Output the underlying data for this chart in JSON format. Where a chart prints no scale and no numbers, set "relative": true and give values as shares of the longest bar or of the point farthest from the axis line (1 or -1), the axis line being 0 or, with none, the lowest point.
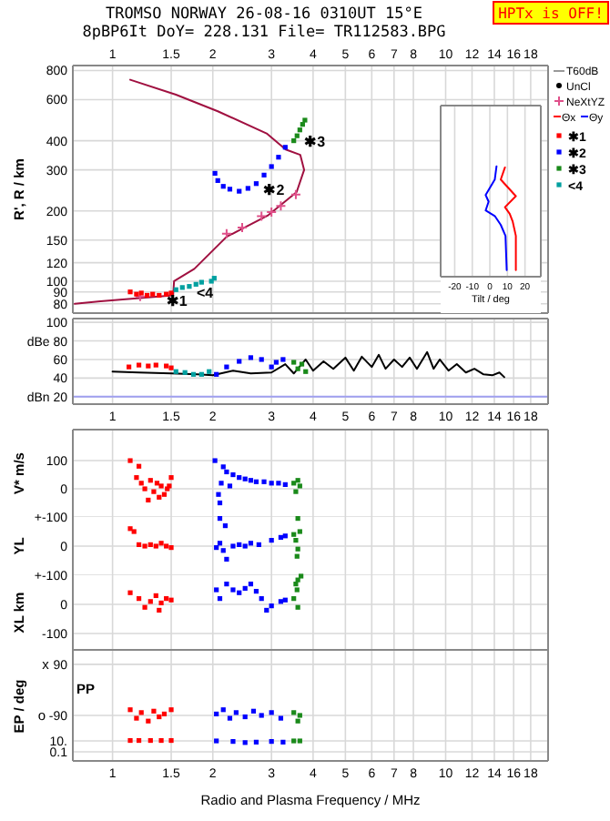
{
  "chart_data": [
    {
      "type": "scatter",
      "title": "TROMSO NORWAY 26-08-16 0310UT 15°E",
      "subtitle": "8pBP6It DoY= 228.131 File= TR112583.BPG",
      "ylabel": "R', R / km",
      "log": "xy",
      "grid": true,
      "legend": "right",
      "marker": "square",
      "xlim": [
        0.76,
        20.3
      ],
      "xticks": [
        1,
        1.5,
        2,
        3,
        4,
        5,
        6,
        7,
        8,
        10,
        12,
        14,
        16,
        18
      ],
      "ylim": [
        73,
        840
      ],
      "yticks": [
        80,
        90,
        100,
        120,
        150,
        200,
        300,
        400,
        600,
        800
      ],
      "annotations": [
        "HPTx is OFF!",
        "T60dB",
        {
          "text": "✱1",
          "x": 1.38,
          "y": 87
        },
        {
          "text": "✱2",
          "x": 2.7,
          "y": 262
        },
        {
          "text": "✱3",
          "x": 3.58,
          "y": 420
        },
        {
          "text": "<4",
          "x": 1.7,
          "y": 95
        }
      ],
      "series": [
        {
          "type": "line",
          "marker": "none",
          "color": "#a01040",
          "x": [
            0.77,
            0.92,
            1.52,
            1.53,
            1.76,
            2.2,
            2.92,
            3.57,
            3.76,
            3.66,
            3.31,
            2.9,
            2.07,
            1.55,
            1.13
          ],
          "values": [
            80,
            82,
            87,
            100,
            113,
            155,
            191,
            241,
            300,
            348,
            367,
            430,
            535,
            630,
            730
          ]
        },
        {
          "name": "NeXtYZ",
          "marker": "cross",
          "color": "#e0508a",
          "x": [
            1.21,
            2.2,
            2.45,
            2.8,
            3.0,
            3.2,
            3.55
          ],
          "values": [
            86,
            160,
            170,
            190,
            198,
            210,
            235
          ]
        },
        {
          "name": "✱1",
          "color": "#ff0000",
          "x": [
            1.13,
            1.18,
            1.22,
            1.27,
            1.32,
            1.38,
            1.45,
            1.5
          ],
          "values": [
            90,
            88,
            89,
            87,
            88,
            87,
            88,
            89
          ]
        },
        {
          "name": "✱2",
          "color": "#0000ff",
          "x": [
            2.03,
            2.07,
            2.15,
            2.25,
            2.4,
            2.55,
            2.7,
            2.85,
            3.0,
            3.15,
            3.3
          ],
          "values": [
            290,
            270,
            255,
            248,
            243,
            250,
            262,
            285,
            310,
            340,
            375
          ]
        },
        {
          "name": "✱3",
          "color": "#1a8a1a",
          "x": [
            3.5,
            3.58,
            3.65,
            3.72,
            3.78
          ],
          "values": [
            400,
            420,
            445,
            470,
            490
          ]
        },
        {
          "name": "<4",
          "color": "#00a0a0",
          "x": [
            1.55,
            1.62,
            1.7,
            1.78,
            1.85,
            1.98,
            2.02
          ],
          "values": [
            92,
            94,
            95,
            97,
            99,
            100,
            103
          ]
        }
      ]
    },
    {
      "type": "line",
      "xlabel": "Tilt / deg",
      "relative": true,
      "legend": "right",
      "grid": "x",
      "tick_labels": "x",
      "xlim": [
        -28,
        29
      ],
      "xticks": [
        -20,
        -10,
        0,
        10,
        20
      ],
      "series": [
        {
          "name": "Θx",
          "color": "#ff0000",
          "x": [
            8.6,
            6.2,
            14.8,
            8.6,
            11.3,
            13,
            14.8,
            14.8
          ],
          "values": [
            0.99,
            0.88,
            0.73,
            0.63,
            0.57,
            0.5,
            0.37,
            0.06
          ]
        },
        {
          "name": "Θy",
          "color": "#0000ff",
          "x": [
            3.8,
            2.8,
            -2.4,
            -0.7,
            -2.4,
            2.8,
            6.2,
            8.9,
            9.6
          ],
          "values": [
            1,
            0.88,
            0.74,
            0.68,
            0.6,
            0.55,
            0.47,
            0.37,
            0.06
          ]
        }
      ]
    },
    {
      "type": "scatter",
      "log": "x",
      "grid": true,
      "marker": "square",
      "xlim": [
        0.76,
        20.3
      ],
      "xticks": [
        1,
        1.5,
        2,
        3,
        4,
        5,
        6,
        7,
        8,
        10,
        12,
        14,
        16,
        18
      ],
      "ylim": [
        12,
        104
      ],
      "yticks": [
        100,
        {
          "value": 80,
          "label": "dBe 80"
        },
        60,
        40,
        {
          "value": 20,
          "label": "dBn 20"
        }
      ],
      "ref_lines": [
        {
          "axis": "y",
          "value": 20,
          "color": "#a0a0f0"
        }
      ],
      "series": [
        {
          "name": "UnCl",
          "type": "line",
          "marker": "none",
          "color": "#000000",
          "x": [
            1.0,
            1.2,
            1.5,
            1.8,
            2.0,
            2.3,
            2.6,
            3.0,
            3.3,
            3.5,
            3.8,
            4.0,
            4.3,
            4.6,
            5.0,
            5.3,
            5.6,
            6.0,
            6.3,
            6.6,
            7.0,
            7.4,
            7.8,
            8.2,
            8.8,
            9.2,
            9.6,
            10.2,
            10.8,
            11.5,
            12.2,
            13,
            13.8,
            14.5,
            15
          ],
          "values": [
            47,
            46,
            45,
            44,
            43,
            48,
            45,
            46,
            55,
            45,
            60,
            48,
            58,
            50,
            62,
            48,
            63,
            52,
            65,
            50,
            60,
            52,
            62,
            50,
            68,
            50,
            60,
            48,
            55,
            46,
            50,
            44,
            43,
            46,
            41
          ]
        },
        {
          "color": "#ff0000",
          "x": [
            1.12,
            1.2,
            1.28,
            1.35,
            1.45,
            1.5
          ],
          "values": [
            52,
            54,
            53,
            54,
            53,
            51
          ]
        },
        {
          "color": "#00a0a0",
          "x": [
            1.55,
            1.65,
            1.75,
            1.85,
            1.95
          ],
          "values": [
            47,
            46,
            44,
            44,
            47
          ]
        },
        {
          "color": "#0000ff",
          "x": [
            2.05,
            2.2,
            2.4,
            2.6,
            2.8,
            3.0,
            3.1,
            3.25
          ],
          "values": [
            44,
            52,
            58,
            62,
            60,
            52,
            57,
            60
          ]
        },
        {
          "color": "#1a8a1a",
          "x": [
            3.5,
            3.6,
            3.7,
            3.8
          ],
          "values": [
            57,
            50,
            55,
            47
          ]
        }
      ]
    },
    {
      "type": "scatter",
      "log": "x",
      "grid": true,
      "marker": "square",
      "tick_labels": "y",
      "ylabel": "V* m/s",
      "xlim": [
        0.76,
        20.3
      ],
      "xticks": [
        1,
        1.5,
        2,
        3,
        4,
        5,
        6,
        7,
        8,
        10,
        12,
        14,
        16,
        18
      ],
      "ylim": [
        -100,
        210
      ],
      "yticks": [
        100,
        0,
        {
          "value": -100,
          "label": "+-100"
        }
      ],
      "series": [
        {
          "color": "#ff0000",
          "x": [
            1.13,
            1.2,
            1.18,
            1.22,
            1.25,
            1.3,
            1.33,
            1.36,
            1.4,
            1.43,
            1.46,
            1.5,
            1.48,
            1.28,
            1.38
          ],
          "values": [
            100,
            80,
            40,
            20,
            0,
            30,
            -10,
            20,
            10,
            -20,
            0,
            40,
            10,
            -40,
            -30
          ]
        },
        {
          "color": "#0000ff",
          "x": [
            2.03,
            2.08,
            2.1,
            2.15,
            2.2,
            2.3,
            2.4,
            2.5,
            2.6,
            2.7,
            2.85,
            3.0,
            3.15,
            3.3,
            2.25,
            2.12
          ],
          "values": [
            100,
            -20,
            -50,
            78,
            60,
            50,
            40,
            35,
            30,
            25,
            25,
            20,
            20,
            15,
            10,
            20
          ]
        },
        {
          "color": "#1a8a1a",
          "x": [
            3.5,
            3.6,
            3.55,
            3.65
          ],
          "values": [
            20,
            30,
            -10,
            10
          ]
        }
      ]
    },
    {
      "type": "scatter",
      "log": "x",
      "grid": true,
      "marker": "square",
      "tick_labels": "y",
      "ylabel": "YL",
      "xlim": [
        0.76,
        20.3
      ],
      "xticks": [
        1,
        1.5,
        2,
        3,
        4,
        5,
        6,
        7,
        8,
        10,
        12,
        14,
        16,
        18
      ],
      "ylim": [
        -100,
        100
      ],
      "yticks": [
        0,
        {
          "value": -100,
          "label": "+-100"
        }
      ],
      "series": [
        {
          "color": "#ff0000",
          "x": [
            1.13,
            1.16,
            1.2,
            1.25,
            1.3,
            1.35,
            1.4,
            1.45,
            1.5
          ],
          "values": [
            60,
            50,
            5,
            0,
            5,
            0,
            10,
            0,
            -5
          ]
        },
        {
          "color": "#0000ff",
          "x": [
            2.05,
            2.1,
            2.15,
            2.2,
            2.3,
            2.4,
            2.5,
            2.6,
            2.75,
            3.0,
            3.2,
            3.3,
            2.1,
            2.18
          ],
          "values": [
            -5,
            10,
            -15,
            -45,
            0,
            5,
            0,
            10,
            5,
            20,
            30,
            35,
            95,
            70
          ]
        },
        {
          "color": "#1a8a1a",
          "x": [
            3.5,
            3.55,
            3.6,
            3.65,
            3.6,
            3.58
          ],
          "values": [
            40,
            20,
            -10,
            50,
            95,
            -35
          ]
        }
      ]
    },
    {
      "type": "scatter",
      "log": "x",
      "grid": true,
      "marker": "square",
      "tick_labels": "y",
      "ylabel": "XL km",
      "xlim": [
        0.76,
        20.3
      ],
      "xticks": [
        1,
        1.5,
        2,
        3,
        4,
        5,
        6,
        7,
        8,
        10,
        12,
        14,
        16,
        18
      ],
      "ylim": [
        -156,
        100
      ],
      "yticks": [
        0,
        -100
      ],
      "series": [
        {
          "color": "#ff0000",
          "x": [
            1.13,
            1.2,
            1.25,
            1.3,
            1.35,
            1.4,
            1.45,
            1.5,
            1.38
          ],
          "values": [
            40,
            20,
            -10,
            10,
            30,
            5,
            20,
            15,
            -20
          ]
        },
        {
          "color": "#0000ff",
          "x": [
            2.05,
            2.1,
            2.2,
            2.3,
            2.4,
            2.5,
            2.7,
            2.8,
            2.9,
            3.0,
            3.2,
            3.3,
            2.6
          ],
          "values": [
            50,
            20,
            70,
            50,
            40,
            55,
            45,
            20,
            -20,
            -5,
            10,
            15,
            70
          ]
        },
        {
          "color": "#1a8a1a",
          "x": [
            3.5,
            3.55,
            3.6,
            3.68,
            3.58,
            3.6
          ],
          "values": [
            20,
            70,
            84,
            97,
            50,
            -10
          ]
        }
      ]
    },
    {
      "type": "scatter",
      "log": "x",
      "grid": true,
      "marker": "square",
      "tick_labels": "y",
      "ylabel": "EP / deg",
      "annotations": [
        "x",
        "o",
        "PP"
      ],
      "xlim": [
        0.76,
        20.3
      ],
      "xticks": [
        1,
        1.5,
        2,
        3,
        4,
        5,
        6,
        7,
        8,
        10,
        12,
        14,
        16,
        18
      ],
      "ylim": [
        -135,
        141
      ],
      "yticks": [
        90,
        -90
      ],
      "series": [
        {
          "color": "#ff0000",
          "x": [
            1.13,
            1.18,
            1.22,
            1.28,
            1.33,
            1.38,
            1.43,
            1.5
          ],
          "values": [
            -70,
            -100,
            -80,
            -110,
            -75,
            -95,
            -85,
            -70
          ]
        },
        {
          "color": "#0000ff",
          "x": [
            2.05,
            2.15,
            2.25,
            2.35,
            2.5,
            2.65,
            2.8,
            3.0,
            3.2
          ],
          "values": [
            -85,
            -70,
            -100,
            -80,
            -95,
            -75,
            -90,
            -80,
            -100
          ]
        },
        {
          "color": "#1a8a1a",
          "x": [
            3.5,
            3.6,
            3.65
          ],
          "values": [
            -80,
            -110,
            -90
          ]
        }
      ]
    },
    {
      "type": "scatter",
      "log": "xy",
      "grid": true,
      "marker": "square",
      "xlabel": "Radio and Plasma Frequency / MHz",
      "xlim": [
        0.76,
        20.3
      ],
      "xticks": [
        1,
        1.5,
        2,
        3,
        4,
        5,
        6,
        7,
        8,
        10,
        12,
        14,
        16,
        18
      ],
      "ylim": [
        0.0022,
        2154
      ],
      "yticks": [
        {
          "value": 10,
          "label": "10."
        },
        0.1
      ],
      "series": [
        {
          "color": "#ff0000",
          "x": [
            1.13,
            1.2,
            1.3,
            1.4,
            1.5
          ],
          "values": [
            12,
            12,
            12,
            12,
            12
          ]
        },
        {
          "color": "#0000ff",
          "x": [
            2.05,
            2.3,
            2.5,
            2.7,
            3.0,
            3.25
          ],
          "values": [
            10,
            8,
            5,
            6,
            8,
            6
          ]
        },
        {
          "color": "#1a8a1a",
          "x": [
            3.5,
            3.65
          ],
          "values": [
            10,
            10
          ]
        }
      ]
    }
  ]
}
